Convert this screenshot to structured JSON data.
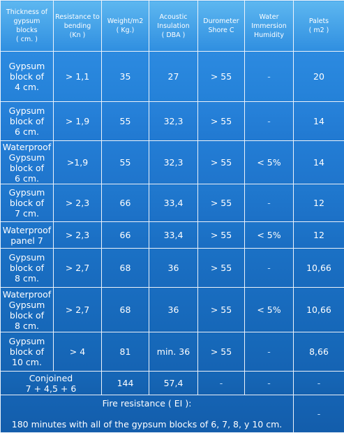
{
  "table": {
    "headers": [
      [
        "Thickness of",
        "gypsum",
        "blocks",
        "( cm. )"
      ],
      [
        "Resistance to",
        "bending",
        "(Kn )"
      ],
      [
        "Weight/m2",
        "( Kg.)"
      ],
      [
        "Acoustic",
        "Insulation",
        "( DBA )"
      ],
      [
        "Durometer",
        "Shore C"
      ],
      [
        "Water",
        "Immersion",
        "Humidity"
      ],
      [
        "Palets",
        "( m2 )"
      ]
    ],
    "rows": [
      {
        "block": [
          "Gypsum",
          "block of",
          "4 cm."
        ],
        "bending": "> 1,1",
        "weight": "35",
        "acoustic": "27",
        "durometer": "> 55",
        "humidity": "-",
        "palets": "20"
      },
      {
        "block": [
          "Gypsum",
          "block of",
          "6 cm."
        ],
        "bending": "> 1,9",
        "weight": "55",
        "acoustic": "32,3",
        "durometer": "> 55",
        "humidity": "-",
        "palets": "14"
      },
      {
        "block": [
          "Waterproof",
          "Gypsum",
          "block of",
          "6 cm."
        ],
        "bending": ">1,9",
        "weight": "55",
        "acoustic": "32,3",
        "durometer": "> 55",
        "humidity": "< 5%",
        "palets": "14"
      },
      {
        "block": [
          "Gypsum",
          "block of",
          "7 cm."
        ],
        "bending": "> 2,3",
        "weight": "66",
        "acoustic": "33,4",
        "durometer": "> 55",
        "humidity": "-",
        "palets": "12"
      },
      {
        "block": [
          "Waterproof",
          "panel 7"
        ],
        "bending": "> 2,3",
        "weight": "66",
        "acoustic": "33,4",
        "durometer": "> 55",
        "humidity": "< 5%",
        "palets": "12"
      },
      {
        "block": [
          "Gypsum",
          "block of",
          "8 cm."
        ],
        "bending": "> 2,7",
        "weight": "68",
        "acoustic": "36",
        "durometer": "> 55",
        "humidity": "-",
        "palets": "10,66"
      },
      {
        "block": [
          "Waterproof",
          "Gypsum",
          "block of",
          "8 cm."
        ],
        "bending": "> 2,7",
        "weight": "68",
        "acoustic": "36",
        "durometer": "> 55",
        "humidity": "< 5%",
        "palets": "10,66"
      },
      {
        "block": [
          "Gypsum",
          "block of",
          "10 cm."
        ],
        "bending": "> 4",
        "weight": "81",
        "acoustic": "min. 36",
        "durometer": "> 55",
        "humidity": "-",
        "palets": "8,66"
      }
    ],
    "conjoined": {
      "label": [
        "Conjoined",
        "7 + 4,5 + 6"
      ],
      "weight": "144",
      "acoustic": "57,4",
      "durometer": "-",
      "humidity": "-",
      "palets": "-"
    },
    "fire": {
      "title": "Fire resistance ( EI ):",
      "text": "180 minutes with all of the gypsum blocks of 6, 7, 8, y 10 cm.",
      "palets": "-"
    }
  }
}
